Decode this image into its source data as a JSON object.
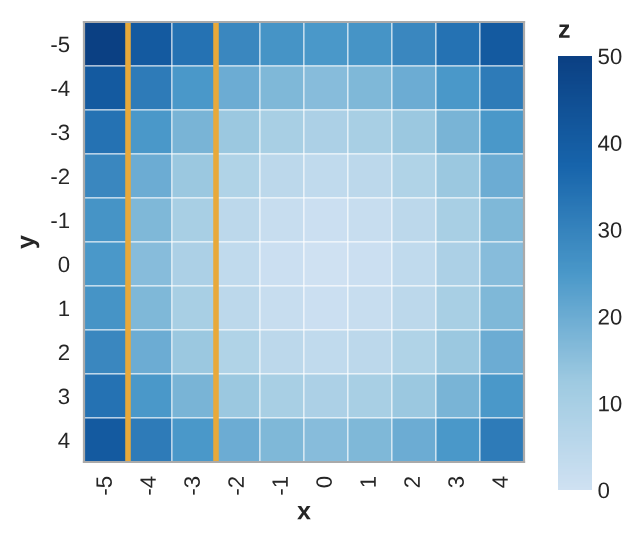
{
  "chart_data": {
    "type": "heatmap",
    "xlabel": "x",
    "ylabel": "y",
    "clabel": "z",
    "categories": [
      "-5",
      "-4",
      "-3",
      "-2",
      "-1",
      "0",
      "1",
      "2",
      "3",
      "4"
    ],
    "y_categories": [
      "-5",
      "-4",
      "-3",
      "-2",
      "-1",
      "0",
      "1",
      "2",
      "3",
      "4"
    ],
    "cells": [
      [
        50,
        41,
        34,
        29,
        26,
        25,
        26,
        29,
        34,
        41
      ],
      [
        41,
        32,
        25,
        20,
        17,
        16,
        17,
        20,
        25,
        32
      ],
      [
        34,
        25,
        18,
        13,
        10,
        9,
        10,
        13,
        18,
        25
      ],
      [
        29,
        20,
        13,
        8,
        5,
        4,
        5,
        8,
        13,
        20
      ],
      [
        26,
        17,
        10,
        5,
        2,
        1,
        2,
        5,
        10,
        17
      ],
      [
        25,
        16,
        9,
        4,
        1,
        0,
        1,
        4,
        9,
        16
      ],
      [
        26,
        17,
        10,
        5,
        2,
        1,
        2,
        5,
        10,
        17
      ],
      [
        29,
        20,
        13,
        8,
        5,
        4,
        5,
        8,
        13,
        20
      ],
      [
        34,
        25,
        18,
        13,
        10,
        9,
        10,
        13,
        18,
        25
      ],
      [
        41,
        32,
        25,
        20,
        17,
        16,
        17,
        20,
        25,
        32
      ]
    ],
    "clim": [
      0,
      50
    ],
    "cticks": [
      0,
      10,
      20,
      30,
      40,
      50
    ]
  }
}
